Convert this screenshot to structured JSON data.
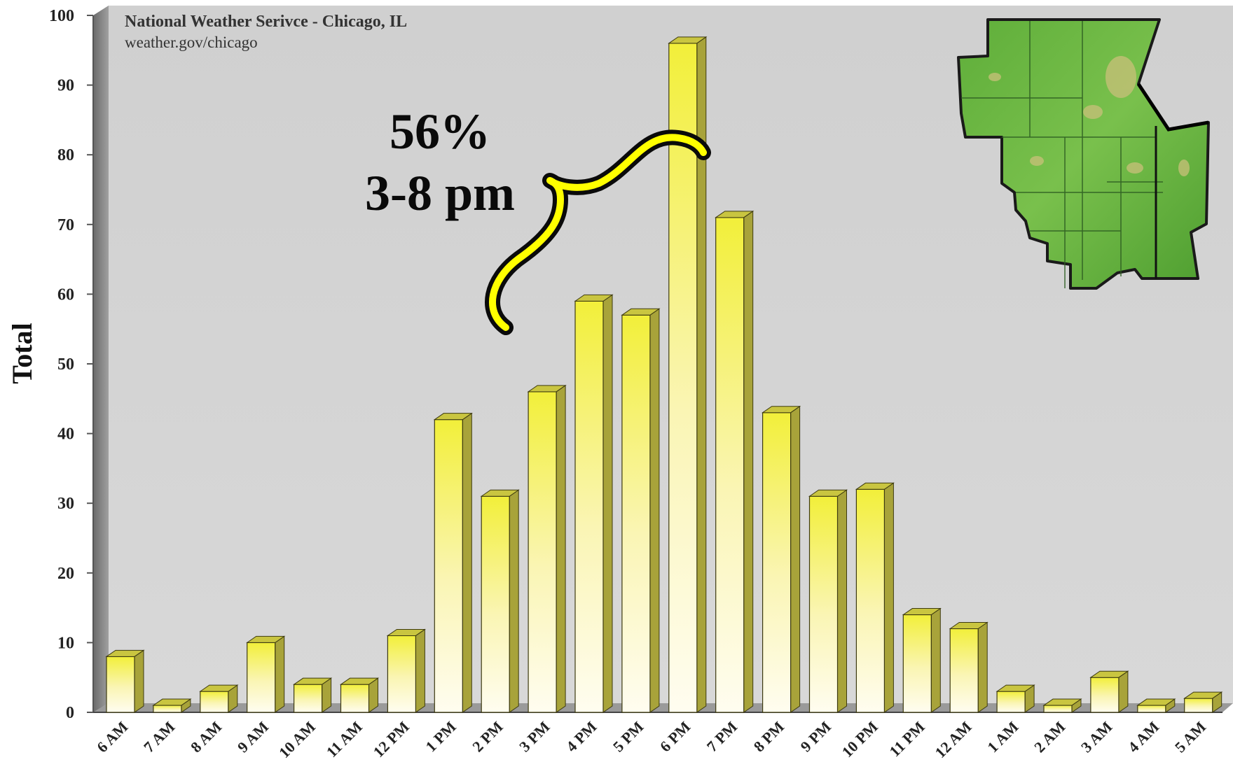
{
  "chart_data": {
    "type": "bar",
    "title": "National Weather Serivce - Chicago, IL",
    "subtitle": "weather.gov/chicago",
    "ylabel": "Total",
    "xlabel": "",
    "ylim": [
      0,
      100
    ],
    "yticks": [
      0,
      10,
      20,
      30,
      40,
      50,
      60,
      70,
      80,
      90,
      100
    ],
    "ytick_labels": [
      "0",
      "10",
      "20",
      "30",
      "40",
      "50",
      "60",
      "70",
      "80",
      "90",
      "100"
    ],
    "grid": false,
    "categories": [
      "6 AM",
      "7 AM",
      "8 AM",
      "9 AM",
      "10 AM",
      "11 AM",
      "12 PM",
      "1 PM",
      "2 PM",
      "3 PM",
      "4 PM",
      "5 PM",
      "6 PM",
      "7 PM",
      "8 PM",
      "9 PM",
      "10 PM",
      "11 PM",
      "12 AM",
      "1 AM",
      "2 AM",
      "3 AM",
      "4 AM",
      "5 AM"
    ],
    "values": [
      8,
      1,
      3,
      10,
      4,
      4,
      11,
      42,
      31,
      46,
      59,
      57,
      96,
      71,
      43,
      31,
      32,
      14,
      12,
      3,
      1,
      5,
      1,
      2
    ],
    "annotation": {
      "line1": "56%",
      "line2": "3-8 pm"
    },
    "colors": {
      "plot_background": "#d4d4d4",
      "bar_top": "#f2ef3a",
      "bar_bottom": "#fffbe6",
      "bar_side": "#a8a33a",
      "bar_cap": "#c9c540",
      "brace": "#ffff00"
    }
  }
}
